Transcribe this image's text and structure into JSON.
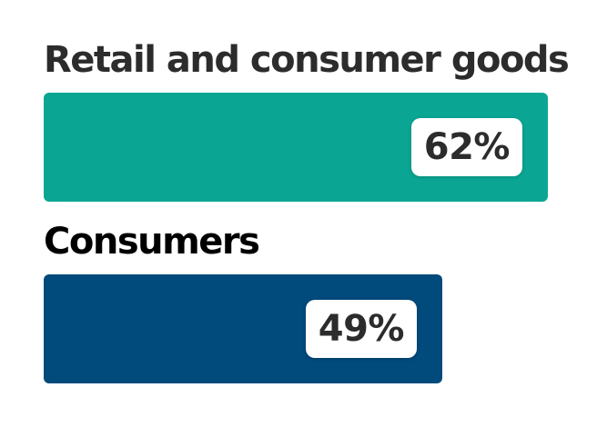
{
  "chart_data": {
    "type": "bar",
    "orientation": "horizontal",
    "categories": [
      "Retail and consumer goods",
      "Consumers"
    ],
    "values": [
      62,
      49
    ],
    "value_labels": [
      "62%",
      "49%"
    ],
    "unit": "%",
    "colors": [
      "#0ba693",
      "#004a7c"
    ],
    "xlim": [
      0,
      100
    ],
    "grid": false,
    "legend": "none"
  }
}
